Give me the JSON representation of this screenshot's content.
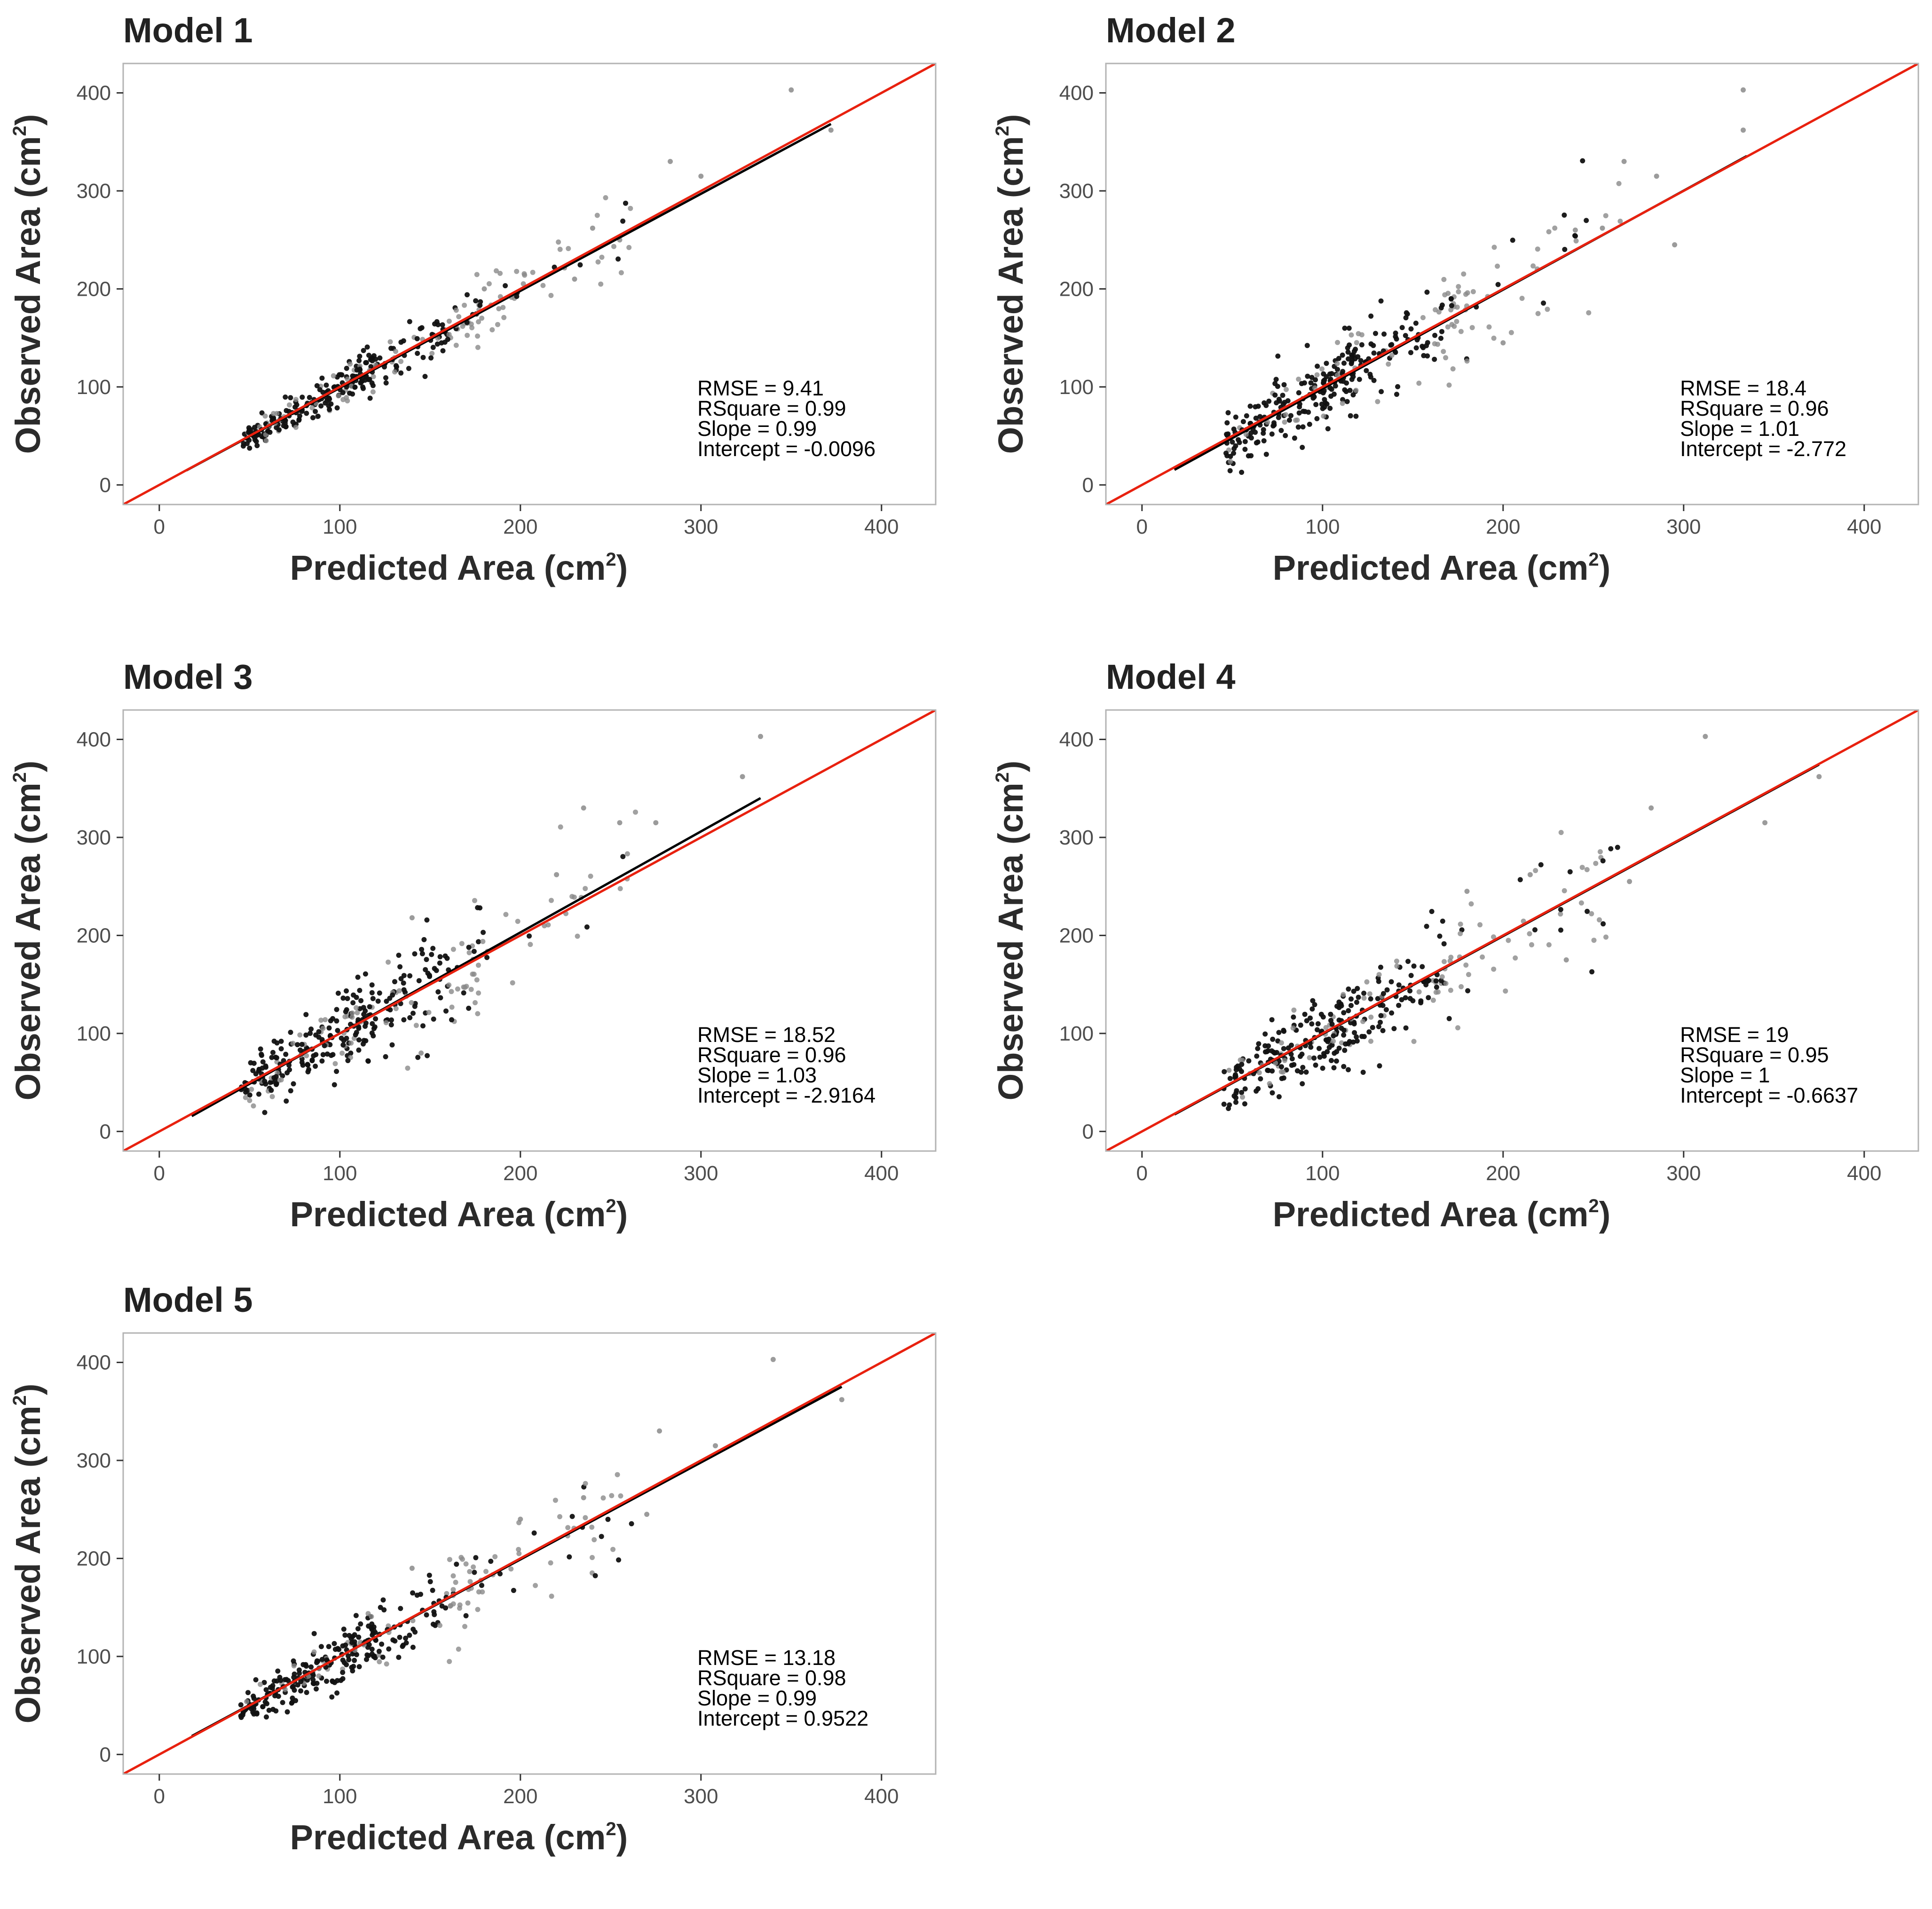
{
  "axis_label_parts": {
    "x_main": "Predicted Area (cm",
    "y_main": "Observed Area (cm",
    "superscript": "2",
    "close": ")"
  },
  "colors": {
    "identity_line": "#e8210f",
    "fit_line": "#000000",
    "points_dark": "#111111",
    "points_light": "#8a8a8a",
    "frame": "#b3b3b3",
    "tick_text": "#4d4d4d"
  },
  "chart_data": [
    {
      "type": "scatter",
      "title": "Model 1",
      "xlabel": "Predicted Area (cm2)",
      "ylabel": "Observed Area (cm2)",
      "xlim": [
        -20,
        430
      ],
      "ylim": [
        -20,
        430
      ],
      "xticks": [
        0,
        100,
        200,
        300,
        400
      ],
      "yticks": [
        0,
        100,
        200,
        300,
        400
      ],
      "grid": false,
      "stats": [
        "RMSE = 9.41",
        "RSquare = 0.99",
        "Slope = 0.99",
        "Intercept = -0.0096"
      ],
      "slope": 0.99,
      "intercept": -0.0096,
      "noise": 9.4,
      "x_range": [
        15,
        372
      ],
      "outliers": [
        [
          350,
          403
        ],
        [
          283,
          330
        ],
        [
          372,
          362
        ],
        [
          300,
          315
        ],
        [
          240,
          262
        ],
        [
          255,
          250
        ],
        [
          230,
          210
        ],
        [
          180,
          200
        ]
      ]
    },
    {
      "type": "scatter",
      "title": "Model 2",
      "xlabel": "Predicted Area (cm2)",
      "ylabel": "Observed Area (cm2)",
      "xlim": [
        -20,
        430
      ],
      "ylim": [
        -20,
        430
      ],
      "xticks": [
        0,
        100,
        200,
        300,
        400
      ],
      "yticks": [
        0,
        100,
        200,
        300,
        400
      ],
      "grid": false,
      "stats": [
        "RMSE = 18.4",
        "RSquare = 0.96",
        "Slope = 1.01",
        "Intercept = -2.772"
      ],
      "slope": 1.01,
      "intercept": -2.772,
      "noise": 18.4,
      "x_range": [
        18,
        335
      ],
      "outliers": [
        [
          333,
          403
        ],
        [
          333,
          362
        ],
        [
          267,
          330
        ],
        [
          295,
          245
        ],
        [
          285,
          315
        ],
        [
          240,
          260
        ],
        [
          255,
          262
        ],
        [
          200,
          145
        ]
      ]
    },
    {
      "type": "scatter",
      "title": "Model 3",
      "xlabel": "Predicted Area (cm2)",
      "ylabel": "Observed Area (cm2)",
      "xlim": [
        -20,
        430
      ],
      "ylim": [
        -20,
        430
      ],
      "xticks": [
        0,
        100,
        200,
        300,
        400
      ],
      "yticks": [
        0,
        100,
        200,
        300,
        400
      ],
      "grid": false,
      "stats": [
        "RMSE = 18.52",
        "RSquare = 0.96",
        "Slope = 1.03",
        "Intercept = -2.9164"
      ],
      "slope": 1.03,
      "intercept": -2.9164,
      "noise": 18.5,
      "x_range": [
        18,
        333
      ],
      "outliers": [
        [
          333,
          403
        ],
        [
          323,
          362
        ],
        [
          235,
          330
        ],
        [
          275,
          315
        ],
        [
          255,
          315
        ],
        [
          145,
          80
        ],
        [
          140,
          218
        ],
        [
          220,
          262
        ]
      ]
    },
    {
      "type": "scatter",
      "title": "Model 4",
      "xlabel": "Predicted Area (cm2)",
      "ylabel": "Observed Area (cm2)",
      "xlim": [
        -20,
        430
      ],
      "ylim": [
        -20,
        430
      ],
      "xticks": [
        0,
        100,
        200,
        300,
        400
      ],
      "yticks": [
        0,
        100,
        200,
        300,
        400
      ],
      "grid": false,
      "stats": [
        "RMSE = 19",
        "RSquare = 0.95",
        "Slope = 1",
        "Intercept = -0.6637"
      ],
      "slope": 1.0,
      "intercept": -0.6637,
      "noise": 19.0,
      "x_range": [
        18,
        375
      ],
      "outliers": [
        [
          312,
          403
        ],
        [
          375,
          362
        ],
        [
          282,
          330
        ],
        [
          345,
          315
        ],
        [
          270,
          255
        ],
        [
          235,
          175
        ],
        [
          215,
          262
        ],
        [
          180,
          245
        ]
      ]
    },
    {
      "type": "scatter",
      "title": "Model 5",
      "xlabel": "Predicted Area (cm2)",
      "ylabel": "Observed Area (cm2)",
      "xlim": [
        -20,
        430
      ],
      "ylim": [
        -20,
        430
      ],
      "xticks": [
        0,
        100,
        200,
        300,
        400
      ],
      "yticks": [
        0,
        100,
        200,
        300,
        400
      ],
      "grid": false,
      "stats": [
        "RMSE = 13.18",
        "RSquare = 0.98",
        "Slope = 0.99",
        "Intercept = 0.9522"
      ],
      "slope": 0.99,
      "intercept": 0.9522,
      "noise": 13.2,
      "x_range": [
        18,
        378
      ],
      "outliers": [
        [
          340,
          403
        ],
        [
          277,
          330
        ],
        [
          378,
          362
        ],
        [
          308,
          315
        ],
        [
          235,
          262
        ],
        [
          270,
          245
        ],
        [
          200,
          240
        ],
        [
          140,
          190
        ]
      ]
    }
  ]
}
